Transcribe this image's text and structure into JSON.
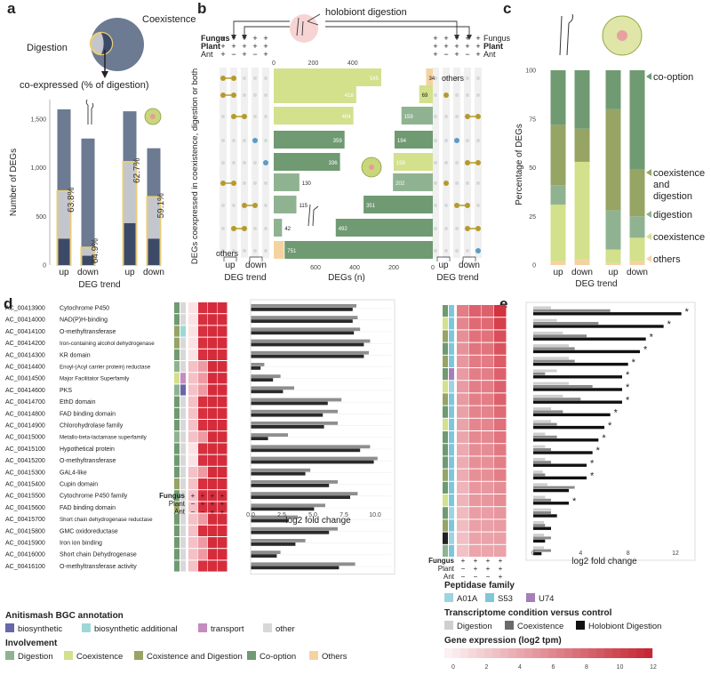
{
  "panels": {
    "a": {
      "label": "a",
      "venn": {
        "big": "Coexistence",
        "small": "Digestion",
        "arrow_label": "co-expressed (% of digestion)"
      },
      "ylabel": "Number of DEGs",
      "xlabel": "DEG trend",
      "yticks": [
        "0",
        "500",
        "1,000",
        "1,500"
      ],
      "groups": [
        "up",
        "down",
        "up",
        "down"
      ]
    },
    "b": {
      "label": "b",
      "title": "holobiont digestion",
      "row_labels": [
        "Fungus",
        "Plant",
        "Ant"
      ],
      "left_signs": [
        [
          "+",
          "+",
          "+",
          "+",
          "+"
        ],
        [
          "+",
          "+",
          "+",
          "+",
          "+"
        ],
        [
          "+",
          "−",
          "+",
          "−",
          "+"
        ]
      ],
      "right_signs": [
        [
          "+",
          "+",
          "+",
          "+",
          "+"
        ],
        [
          "+",
          "+",
          "+",
          "+",
          "+"
        ],
        [
          "+",
          "−",
          "+",
          "−",
          "+"
        ]
      ],
      "ylabel": "DEGs coexpressed in coexistence, digestion or both",
      "xlabel": "DEGs (n)",
      "trend_label": "DEG trend",
      "updown": [
        "up",
        "down"
      ],
      "top_ticks": [
        "0",
        "200",
        "400"
      ],
      "bottom_ticks": [
        "600",
        "400",
        "200",
        "0",
        "200",
        "400",
        "600"
      ],
      "others_left": "others",
      "others_right": "others"
    },
    "c": {
      "label": "c",
      "ylabel": "Percentage of DEGs",
      "xlabel": "DEG trend",
      "yticks": [
        "0",
        "25",
        "50",
        "75",
        "100"
      ],
      "groups": [
        "up",
        "down",
        "up",
        "down"
      ],
      "legend": [
        "co-option",
        "coexistence and digestion",
        "digestion",
        "coexistence",
        "others"
      ]
    },
    "d": {
      "label": "d",
      "xlabel": "log2 fold change",
      "xticks": [
        "0.0",
        "2.5",
        "5.0",
        "7.5",
        "10.0"
      ],
      "cond_rows": [
        "Fungus",
        "Plant",
        "Ant"
      ],
      "cond_signs": [
        [
          "+",
          "+",
          "+",
          "+"
        ],
        [
          "−",
          "+",
          "+",
          "+"
        ],
        [
          "−",
          "−",
          "+",
          "+"
        ]
      ]
    },
    "e": {
      "label": "e",
      "xlabel": "log2 fold change",
      "xticks": [
        "0",
        "4",
        "8",
        "12"
      ],
      "cond_rows": [
        "Fungus",
        "Plant",
        "Ant"
      ],
      "cond_signs": [
        [
          "+",
          "+",
          "+",
          "+"
        ],
        [
          "−",
          "+",
          "+",
          "+"
        ],
        [
          "−",
          "−",
          "−",
          "+"
        ]
      ]
    }
  },
  "legends": {
    "antismash_title": "Anitismash BGC annotation",
    "antismash": [
      "biosynthetic",
      "biosynthetic additional",
      "transport",
      "other"
    ],
    "involvement_title": "Involvement",
    "involvement": [
      "Digestion",
      "Coexistence",
      "Coxistence and Digestion",
      "Co-option",
      "Others"
    ],
    "peptidase_title": "Peptidase family",
    "peptidase": [
      "A01A",
      "S53",
      "U74"
    ],
    "condition_title": "Transcriptome condition versus control",
    "condition": [
      "Digestion",
      "Coexistence",
      "Holobiont Digestion"
    ],
    "expr_title": "Gene expression (log2 tpm)",
    "expr_ticks": [
      "0",
      "2",
      "4",
      "6",
      "8",
      "10",
      "12"
    ]
  },
  "colors": {
    "slate": "#6c7a92",
    "darknavy": "#3c4a68",
    "graybox": "#c3c6cd",
    "gold": "#e8cd78",
    "digestion": "#8fb391",
    "coexistence": "#d3e08c",
    "coxdig": "#96a464",
    "cooption": "#6f9a72",
    "others": "#f5d3a0",
    "dot": "#b69a2a",
    "dotblue": "#5d9bc5",
    "heat_hi": "#cc2837"
  },
  "chart_data": [
    {
      "type": "bar",
      "panel": "a",
      "categories": [
        "up",
        "down",
        "up",
        "down"
      ],
      "series": [
        {
          "name": "Coexistence",
          "values": [
            1600,
            1300,
            1580,
            1200
          ]
        },
        {
          "name": "Digestion",
          "values": [
            760,
            180,
            1060,
            700
          ]
        }
      ],
      "co_expressed": [
        270,
        95,
        430,
        270
      ],
      "percent_labels": [
        "63.8%",
        "64.9%",
        "62.7%",
        "59.1%"
      ],
      "ylim": [
        0,
        1700
      ]
    },
    {
      "type": "bar",
      "panel": "b",
      "left_values": [
        545,
        418,
        404,
        359,
        336,
        130,
        115,
        42,
        52
      ],
      "right_values": [
        34,
        69,
        159,
        194,
        199,
        202,
        351,
        492,
        751
      ]
    },
    {
      "type": "bar",
      "panel": "c",
      "categories": [
        "up",
        "down",
        "up",
        "down"
      ],
      "series": [
        {
          "name": "others",
          "values": [
            2,
            3,
            1,
            2
          ]
        },
        {
          "name": "coexistence",
          "values": [
            29,
            50,
            7,
            12
          ]
        },
        {
          "name": "digestion",
          "values": [
            10,
            0,
            20,
            11
          ]
        },
        {
          "name": "coexistence and digestion",
          "values": [
            31,
            17,
            52,
            24
          ]
        },
        {
          "name": "co-option",
          "values": [
            28,
            30,
            20,
            51
          ]
        }
      ],
      "ylim": [
        0,
        100
      ]
    },
    {
      "type": "bar",
      "panel": "d",
      "genes": [
        {
          "id": "AC_00413900",
          "name": "Cytochrome P450"
        },
        {
          "id": "AC_00414000",
          "name": "NAD(P)H-binding"
        },
        {
          "id": "AC_00414100",
          "name": "O-methyltransferase"
        },
        {
          "id": "AC_00414200",
          "name": "Iron-containing alcohol dehydrogenase"
        },
        {
          "id": "AC_00414300",
          "name": "KR domain"
        },
        {
          "id": "AC_00414400",
          "name": "Enoyl-(Acyl carrier protein) reductase"
        },
        {
          "id": "AC_00414500",
          "name": "Major Facilitator Superfamily"
        },
        {
          "id": "AC_00414600",
          "name": "PKS"
        },
        {
          "id": "AC_00414700",
          "name": "EthD domain"
        },
        {
          "id": "AC_00414800",
          "name": "FAD binding domain"
        },
        {
          "id": "AC_00414900",
          "name": "Chlorohydrolase family"
        },
        {
          "id": "AC_00415000",
          "name": "Metallo-beta-lactamase superfamily"
        },
        {
          "id": "AC_00415100",
          "name": "Hypothetical protein"
        },
        {
          "id": "AC_00415200",
          "name": "O-methyltransferase"
        },
        {
          "id": "AC_00415300",
          "name": "GAL4-like"
        },
        {
          "id": "AC_00415400",
          "name": "Cupin domain"
        },
        {
          "id": "AC_00415500",
          "name": "Cytochrome P450 family"
        },
        {
          "id": "AC_00415600",
          "name": "FAD binding domain"
        },
        {
          "id": "AC_00415700",
          "name": "Short chain dehydrogenase reductase"
        },
        {
          "id": "AC_00415800",
          "name": "GMC oxidoreductase"
        },
        {
          "id": "AC_00415900",
          "name": "Iron ion binding"
        },
        {
          "id": "AC_00416000",
          "name": "Short chain Dehydrogenase"
        },
        {
          "id": "AC_00416100",
          "name": "O-methyltransferase activity"
        }
      ],
      "antismash": [
        "other",
        "other",
        "biosyn_add",
        "other",
        "other",
        "other",
        "transport",
        "biosyn",
        "other",
        "other",
        "other",
        "other",
        "other",
        "other",
        "other",
        "other",
        "other",
        "other",
        "other",
        "other",
        "other",
        "other",
        "other"
      ],
      "involvement": [
        "cooption",
        "cooption",
        "coxdig",
        "coxdig",
        "cooption",
        "digestion",
        "coexistence",
        "digestion",
        "cooption",
        "cooption",
        "cooption",
        "digestion",
        "cooption",
        "cooption",
        "cooption",
        "coxdig",
        "cooption",
        "coxdig",
        "cooption",
        "cooption",
        "cooption",
        "cooption",
        "cooption"
      ],
      "coexistence_fc": [
        8.5,
        8.6,
        8.8,
        9.6,
        9.5,
        1.1,
        2.4,
        3.5,
        7.3,
        7.0,
        7.0,
        3.0,
        9.6,
        10.2,
        4.8,
        7.0,
        8.6,
        6.0,
        3.8,
        7.0,
        4.4,
        2.4,
        8.4
      ],
      "holobiont_fc": [
        8.2,
        8.2,
        8.3,
        9.1,
        9.1,
        0.8,
        1.8,
        2.6,
        6.2,
        5.8,
        5.9,
        1.4,
        8.8,
        9.9,
        4.4,
        6.3,
        8.0,
        5.1,
        3.0,
        6.3,
        3.6,
        2.1,
        7.1
      ],
      "xlim": [
        0,
        10.5
      ]
    },
    {
      "type": "bar",
      "panel": "e",
      "rows": 20,
      "peptidase": [
        "S53",
        "S53",
        "S53",
        "S53",
        "S53",
        "U74",
        "A01A",
        "S53",
        "S53",
        "S53",
        "S53",
        "S53",
        "S53",
        "S53",
        "S53",
        "S53",
        "A01A",
        "S53",
        "A01A",
        "S53"
      ],
      "involvement": [
        "cooption",
        "coexistence",
        "coxdig",
        "cooption",
        "coxdig",
        "cooption",
        "coexistence",
        "coxdig",
        "cooption",
        "coexistence",
        "cooption",
        "cooption",
        "cooption",
        "coxdig",
        "cooption",
        "coexistence",
        "cooption",
        "coxdig",
        "others",
        "digestion"
      ],
      "digestion_fc": [
        1.5,
        2.0,
        2.5,
        3.0,
        3.0,
        2.0,
        3.0,
        2.5,
        1.5,
        1.5,
        1.0,
        1.0,
        1.0,
        0.8,
        1.2,
        1.0,
        1.5,
        0.9,
        0.9,
        0.9
      ],
      "coexistence_fc": [
        6.5,
        5.5,
        4.5,
        3.5,
        3.5,
        1.0,
        5.0,
        4.0,
        2.5,
        2.0,
        2.0,
        1.5,
        1.5,
        1.0,
        3.5,
        1.5,
        1.5,
        1.0,
        1.5,
        1.5
      ],
      "holobiont_fc": [
        12.5,
        11.0,
        9.5,
        9.0,
        8.0,
        7.5,
        7.5,
        7.5,
        6.5,
        6.0,
        5.5,
        5.0,
        4.5,
        4.5,
        3.0,
        3.0,
        2.0,
        1.5,
        1.0,
        0.7
      ],
      "significant": [
        true,
        true,
        true,
        true,
        true,
        true,
        true,
        true,
        true,
        true,
        true,
        true,
        true,
        true,
        false,
        true,
        false,
        false,
        false,
        false
      ],
      "xlim": [
        0,
        13.5
      ]
    }
  ]
}
